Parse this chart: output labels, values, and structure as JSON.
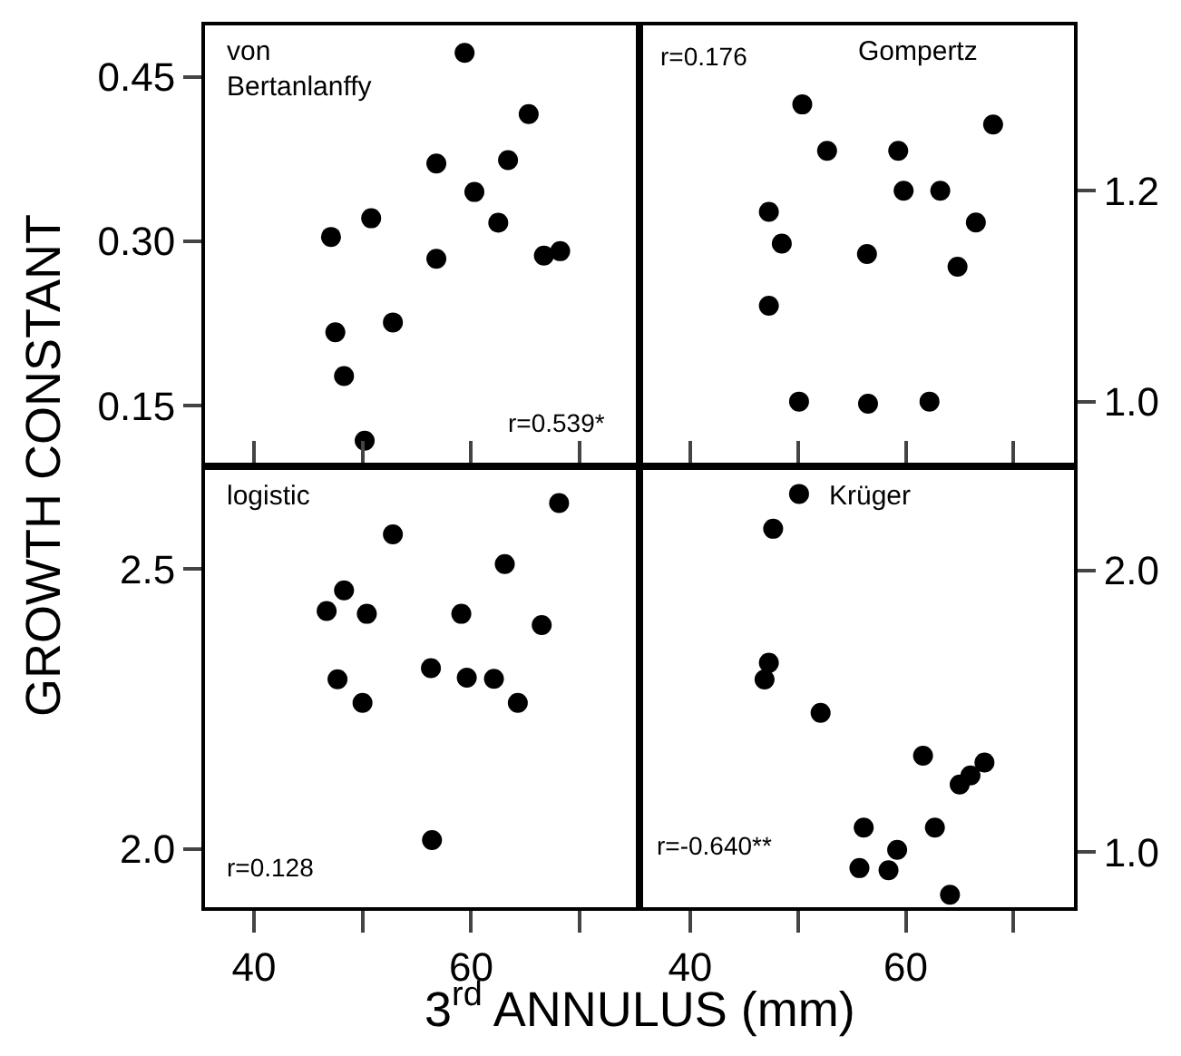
{
  "chart_data": [
    {
      "type": "scatter",
      "title": "von\nBertanlanffy",
      "annotations": [
        "r=0.539*"
      ],
      "ylabel": "GROWTH CONSTANT",
      "color": "#000000",
      "marker": "circle",
      "tick_labels": "y",
      "x": [
        47.1,
        50.8,
        47.5,
        48.3,
        50.2,
        52.8,
        56.8,
        56.8,
        59.4,
        60.3,
        62.5,
        63.4,
        65.3,
        66.7,
        68.2
      ],
      "values": [
        0.304,
        0.321,
        0.217,
        0.177,
        0.118,
        0.226,
        0.371,
        0.284,
        0.472,
        0.345,
        0.317,
        0.374,
        0.416,
        0.287,
        0.291
      ],
      "xlim": [
        35.5,
        75.5
      ],
      "ylim": [
        0.098,
        0.497
      ],
      "xticks": [
        {
          "value": 40,
          "label": null
        },
        {
          "value": 50,
          "label": null
        },
        {
          "value": 60,
          "label": null
        },
        {
          "value": 70,
          "label": null
        }
      ],
      "yticks": [
        0.15,
        {
          "value": 0.3,
          "label": "0.30"
        },
        0.45
      ]
    },
    {
      "type": "scatter",
      "title": "Gompertz",
      "annotations": [
        "r=0.176"
      ],
      "color": "#000000",
      "marker": "circle",
      "tick_labels": "y",
      "x": [
        50.4,
        52.7,
        59.3,
        68.1,
        59.8,
        63.2,
        47.3,
        48.5,
        56.4,
        66.5,
        64.8,
        47.3,
        50.1,
        56.5,
        62.2
      ],
      "values": [
        1.282,
        1.238,
        1.238,
        1.263,
        1.2,
        1.2,
        1.18,
        1.15,
        1.14,
        1.17,
        1.128,
        1.091,
        1.0,
        0.998,
        1.0
      ],
      "xlim": [
        35.3,
        75.6
      ],
      "ylim": [
        0.942,
        1.357
      ],
      "xticks": [
        {
          "value": 40,
          "label": null
        },
        {
          "value": 50,
          "label": null
        },
        {
          "value": 60,
          "label": null
        },
        {
          "value": 70,
          "label": null
        }
      ],
      "yticks": [
        {
          "value": 1.0,
          "label": "1.0"
        },
        1.2
      ]
    },
    {
      "type": "scatter",
      "title": "logistic",
      "annotations": [
        "r=0.128"
      ],
      "xlabel": "3$^{rd}$ ANNULUS (mm)",
      "color": "#000000",
      "marker": "circle",
      "x": [
        46.7,
        48.3,
        50.4,
        52.8,
        47.7,
        50.0,
        56.3,
        56.4,
        59.1,
        59.6,
        62.1,
        63.1,
        64.3,
        66.5,
        68.1
      ],
      "values": [
        2.425,
        2.462,
        2.42,
        2.562,
        2.303,
        2.261,
        2.323,
        2.016,
        2.42,
        2.306,
        2.304,
        2.509,
        2.261,
        2.4,
        2.618
      ],
      "xlim": [
        35.5,
        75.5
      ],
      "ylim": [
        1.896,
        2.677
      ],
      "xticks": [
        40,
        {
          "value": 50,
          "label": null
        },
        60,
        {
          "value": 70,
          "label": null
        }
      ],
      "yticks": [
        {
          "value": 2.0,
          "label": "2.0"
        },
        2.5
      ]
    },
    {
      "type": "scatter",
      "title": "Krüger",
      "annotations": [
        "r=-0.640**"
      ],
      "color": "#000000",
      "marker": "circle",
      "x": [
        50.1,
        47.7,
        47.3,
        46.9,
        52.1,
        61.6,
        65.0,
        66.0,
        67.3,
        62.7,
        56.1,
        59.2,
        55.7,
        58.4,
        64.1
      ],
      "values": [
        2.272,
        2.148,
        1.672,
        1.613,
        1.494,
        1.342,
        1.24,
        1.272,
        1.318,
        1.087,
        1.087,
        1.008,
        0.943,
        0.935,
        0.848
      ],
      "xlim": [
        35.3,
        75.6
      ],
      "ylim": [
        0.804,
        2.357
      ],
      "xticks": [
        40,
        {
          "value": 50,
          "label": null
        },
        60,
        {
          "value": 70,
          "label": null
        }
      ],
      "yticks": [
        {
          "value": 1.0,
          "label": "1.0"
        },
        {
          "value": 2.0,
          "label": "2.0"
        }
      ]
    }
  ]
}
